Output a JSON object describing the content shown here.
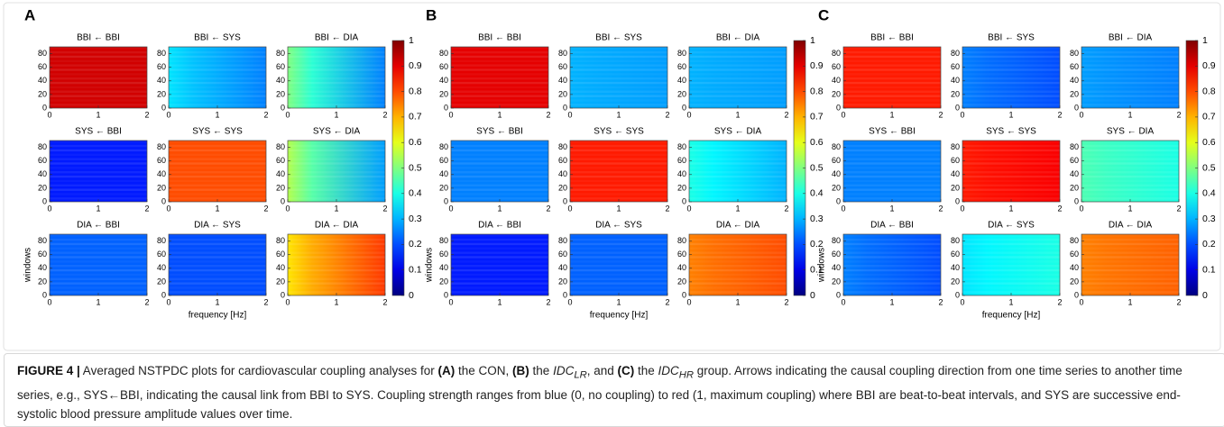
{
  "panels": [
    {
      "label": "A",
      "titles": [
        [
          "BBI ← BBI",
          "BBI ← SYS",
          "BBI ← DIA"
        ],
        [
          "SYS ← BBI",
          "SYS ← SYS",
          "SYS ← DIA"
        ],
        [
          "DIA ← BBI",
          "DIA ← SYS",
          "DIA ← DIA"
        ]
      ]
    },
    {
      "label": "B",
      "titles": [
        [
          "BBI ← BBI",
          "BBI ← SYS",
          "BBI ← DIA"
        ],
        [
          "SYS ← BBI",
          "SYS ← SYS",
          "SYS ← DIA"
        ],
        [
          "DIA ← BBI",
          "DIA ← SYS",
          "DIA ← DIA"
        ]
      ]
    },
    {
      "label": "C",
      "titles": [
        [
          "BBI ← BBI",
          "BBI ← SYS",
          "BBI ← DIA"
        ],
        [
          "SYS ← BBI",
          "SYS ← SYS",
          "SYS ← DIA"
        ],
        [
          "DIA ← BBI",
          "DIA ← SYS",
          "DIA ← DIA"
        ]
      ]
    }
  ],
  "axes": {
    "xlim": [
      0,
      2
    ],
    "xticks": [
      0,
      1,
      2
    ],
    "ylim": [
      0,
      90
    ],
    "yticks": [
      0,
      20,
      40,
      60,
      80
    ],
    "xlabel": "frequency [Hz]",
    "ylabel": "windows"
  },
  "colorbar": {
    "lim": [
      0,
      1
    ],
    "ticks": [
      0,
      0.1,
      0.2,
      0.3,
      0.4,
      0.5,
      0.6,
      0.7,
      0.8,
      0.9,
      1
    ]
  },
  "caption": {
    "label": "FIGURE 4 |",
    "parts": [
      " Averaged NSTPDC plots for cardiovascular coupling analyses for ",
      "(A)",
      " the CON, ",
      "(B)",
      " the ",
      "IDC",
      "LR",
      ", and ",
      "(C)",
      " the ",
      "IDC",
      "HR",
      " group. Arrows indicating the causal coupling direction from one time series to another time series, e.g., SYS←BBI, indicating the causal link from BBI to SYS. Coupling strength ranges from blue (0, no coupling) to red (1, maximum coupling) where BBI are beat-to-beat intervals, and SYS are successive end-systolic blood pressure amplitude values over time."
    ]
  }
}
